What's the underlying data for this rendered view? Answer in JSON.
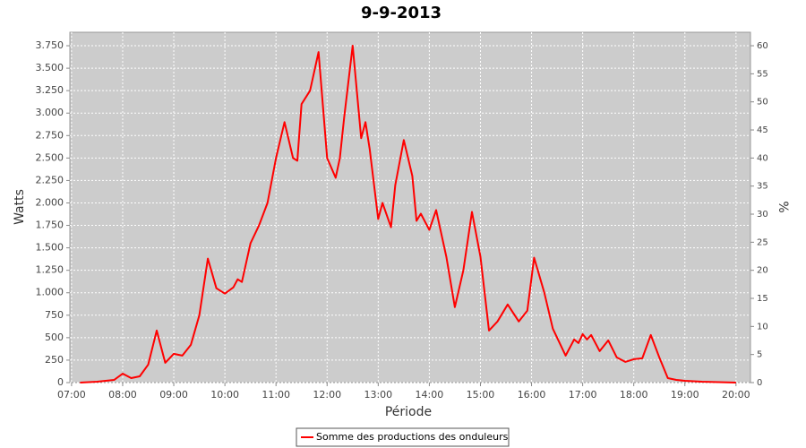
{
  "chart_data": {
    "type": "line",
    "title": "9-9-2013",
    "x_label": "Période",
    "y_label": "Watts",
    "y2_label": "%",
    "x": [
      "07:10",
      "07:30",
      "07:50",
      "08:00",
      "08:10",
      "08:20",
      "08:30",
      "08:40",
      "08:50",
      "09:00",
      "09:10",
      "09:20",
      "09:30",
      "09:40",
      "09:50",
      "10:00",
      "10:10",
      "10:15",
      "10:20",
      "10:30",
      "10:40",
      "10:50",
      "11:00",
      "11:10",
      "11:20",
      "11:25",
      "11:30",
      "11:40",
      "11:50",
      "12:00",
      "12:10",
      "12:15",
      "12:20",
      "12:30",
      "12:40",
      "12:45",
      "12:50",
      "13:00",
      "13:05",
      "13:15",
      "13:20",
      "13:30",
      "13:40",
      "13:45",
      "13:50",
      "14:00",
      "14:08",
      "14:20",
      "14:30",
      "14:40",
      "14:50",
      "15:00",
      "15:10",
      "15:20",
      "15:32",
      "15:45",
      "15:55",
      "16:03",
      "16:15",
      "16:25",
      "16:40",
      "16:50",
      "16:55",
      "17:00",
      "17:05",
      "17:10",
      "17:20",
      "17:30",
      "17:40",
      "17:50",
      "18:00",
      "18:10",
      "18:20",
      "18:30",
      "18:40",
      "18:50",
      "19:00",
      "19:20",
      "19:40",
      "20:00"
    ],
    "series": [
      {
        "name": "Somme des productions des onduleurs",
        "color": "#ff0000",
        "values": [
          0,
          10,
          30,
          100,
          50,
          70,
          200,
          580,
          220,
          320,
          300,
          420,
          750,
          1380,
          1050,
          990,
          1060,
          1150,
          1120,
          1550,
          1750,
          2000,
          2500,
          2900,
          2500,
          2470,
          3100,
          3250,
          3680,
          2500,
          2280,
          2500,
          2950,
          3750,
          2720,
          2900,
          2600,
          1820,
          2000,
          1730,
          2200,
          2700,
          2300,
          1800,
          1880,
          1700,
          1920,
          1400,
          840,
          1250,
          1900,
          1400,
          580,
          680,
          870,
          680,
          800,
          1390,
          1000,
          600,
          300,
          480,
          440,
          540,
          480,
          530,
          350,
          470,
          280,
          230,
          260,
          270,
          530,
          280,
          50,
          30,
          20,
          10,
          5,
          0
        ]
      }
    ],
    "xlim": [
      "06:58",
      "20:17"
    ],
    "xticks": [
      "07:00",
      "08:00",
      "09:00",
      "10:00",
      "11:00",
      "12:00",
      "13:00",
      "14:00",
      "15:00",
      "16:00",
      "17:00",
      "18:00",
      "19:00",
      "20:00"
    ],
    "ylim": [
      0,
      3900
    ],
    "yticks": [
      0,
      250,
      500,
      750,
      {
        "value": 1000,
        "label": "1.000"
      },
      {
        "value": 1250,
        "label": "1.250"
      },
      {
        "value": 1500,
        "label": "1.500"
      },
      {
        "value": 1750,
        "label": "1.750"
      },
      {
        "value": 2000,
        "label": "2.000"
      },
      {
        "value": 2250,
        "label": "2.250"
      },
      {
        "value": 2500,
        "label": "2.500"
      },
      {
        "value": 2750,
        "label": "2.750"
      },
      {
        "value": 3000,
        "label": "3.000"
      },
      {
        "value": 3250,
        "label": "3.250"
      },
      {
        "value": 3500,
        "label": "3.500"
      },
      {
        "value": 3750,
        "label": "3.750"
      }
    ],
    "y2lim": [
      0,
      62.4
    ],
    "y2ticks": [
      0,
      5,
      10,
      15,
      20,
      25,
      30,
      35,
      40,
      45,
      50,
      55,
      60
    ],
    "grid": true
  }
}
